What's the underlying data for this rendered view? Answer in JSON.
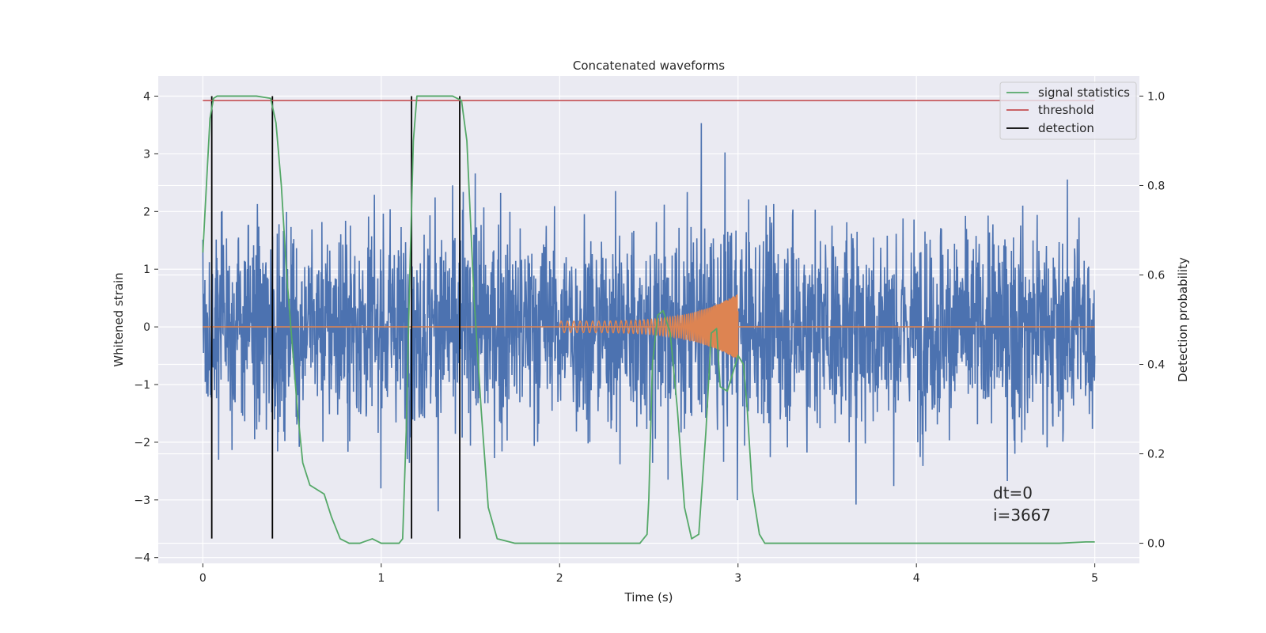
{
  "chart_data": {
    "type": "line",
    "title": "Concatenated waveforms",
    "xlabel": "Time (s)",
    "ylabel": "Whitened strain",
    "y2label": "Detection probability",
    "xlim": [
      -0.25,
      5.25
    ],
    "ylim": [
      -4.1,
      4.35
    ],
    "y2lim": [
      -0.045,
      1.045
    ],
    "xticks": [
      0,
      1,
      2,
      3,
      4,
      5
    ],
    "yticks": [
      -4,
      -3,
      -2,
      -1,
      0,
      1,
      2,
      3,
      4
    ],
    "y2ticks": [
      0.0,
      0.2,
      0.4,
      0.6,
      0.8,
      1.0
    ],
    "xtick_labels": [
      "0",
      "1",
      "2",
      "3",
      "4",
      "5"
    ],
    "ytick_labels": [
      "−4",
      "−3",
      "−2",
      "−1",
      "0",
      "1",
      "2",
      "3",
      "4"
    ],
    "y2tick_labels": [
      "0.0",
      "0.2",
      "0.4",
      "0.6",
      "0.8",
      "1.0"
    ],
    "grid": true,
    "legend_position": "top-right",
    "colors": {
      "noise": "#4c72b0",
      "waveform": "#dd8452",
      "signal_statistics": "#55a868",
      "threshold": "#c44e52",
      "detection": "#000000",
      "plot_background": "#eaeaf2",
      "grid": "#ffffff"
    },
    "legend": [
      {
        "label": "signal statistics",
        "color": "#55a868"
      },
      {
        "label": "threshold",
        "color": "#c44e52"
      },
      {
        "label": "detection",
        "color": "#000000"
      }
    ],
    "series": [
      {
        "name": "signal statistics",
        "axis": "right",
        "x": [
          0,
          0.02,
          0.04,
          0.06,
          0.08,
          0.1,
          0.15,
          0.3,
          0.38,
          0.41,
          0.44,
          0.47,
          0.5,
          0.53,
          0.56,
          0.6,
          0.64,
          0.68,
          0.72,
          0.77,
          0.82,
          0.88,
          0.95,
          1.0,
          1.05,
          1.1,
          1.12,
          1.14,
          1.16,
          1.18,
          1.2,
          1.3,
          1.4,
          1.45,
          1.48,
          1.52,
          1.56,
          1.6,
          1.65,
          1.75,
          2.0,
          2.3,
          2.45,
          2.49,
          2.5,
          2.52,
          2.55,
          2.58,
          2.62,
          2.66,
          2.7,
          2.74,
          2.78,
          2.82,
          2.85,
          2.88,
          2.9,
          2.94,
          2.97,
          3.0,
          3.03,
          3.05,
          3.08,
          3.12,
          3.15,
          3.18,
          3.3,
          4.0,
          4.8,
          4.95,
          5.0
        ],
        "values": [
          0.65,
          0.8,
          0.95,
          0.995,
          1.0,
          1.0,
          1.0,
          1.0,
          0.995,
          0.94,
          0.8,
          0.6,
          0.45,
          0.3,
          0.18,
          0.13,
          0.12,
          0.11,
          0.06,
          0.01,
          0.0,
          0.0,
          0.01,
          0.0,
          0.0,
          0.0,
          0.01,
          0.25,
          0.6,
          0.9,
          1.0,
          1.0,
          1.0,
          0.99,
          0.9,
          0.55,
          0.3,
          0.08,
          0.01,
          0.0,
          0.0,
          0.0,
          0.0,
          0.02,
          0.1,
          0.4,
          0.51,
          0.52,
          0.47,
          0.3,
          0.08,
          0.01,
          0.02,
          0.25,
          0.47,
          0.48,
          0.35,
          0.34,
          0.38,
          0.42,
          0.4,
          0.31,
          0.12,
          0.02,
          0.0,
          0.0,
          0.0,
          0.0,
          0.0,
          0.003,
          0.003
        ]
      },
      {
        "name": "threshold",
        "axis": "right",
        "x": [
          0,
          5
        ],
        "values": [
          0.99,
          0.99
        ]
      },
      {
        "name": "detection",
        "axis": "left",
        "type": "vlines",
        "x": [
          0.05,
          0.39,
          1.17,
          1.44
        ],
        "ymin": -3.67,
        "ymax": 4.0
      },
      {
        "type": "noise",
        "axis": "left",
        "x_start": 0,
        "x_end": 5,
        "typical_range": [
          -1.6,
          1.6
        ],
        "extremes": [
          -3.67,
          4.0
        ]
      },
      {
        "type": "chirp",
        "axis": "left",
        "x_start": 2.0,
        "x_end": 3.0,
        "amplitude_start": 0.1,
        "amplitude_end": 0.58,
        "baseline": 0
      }
    ],
    "annotation": {
      "line1": "dt=0",
      "line2": "i=3667"
    }
  }
}
